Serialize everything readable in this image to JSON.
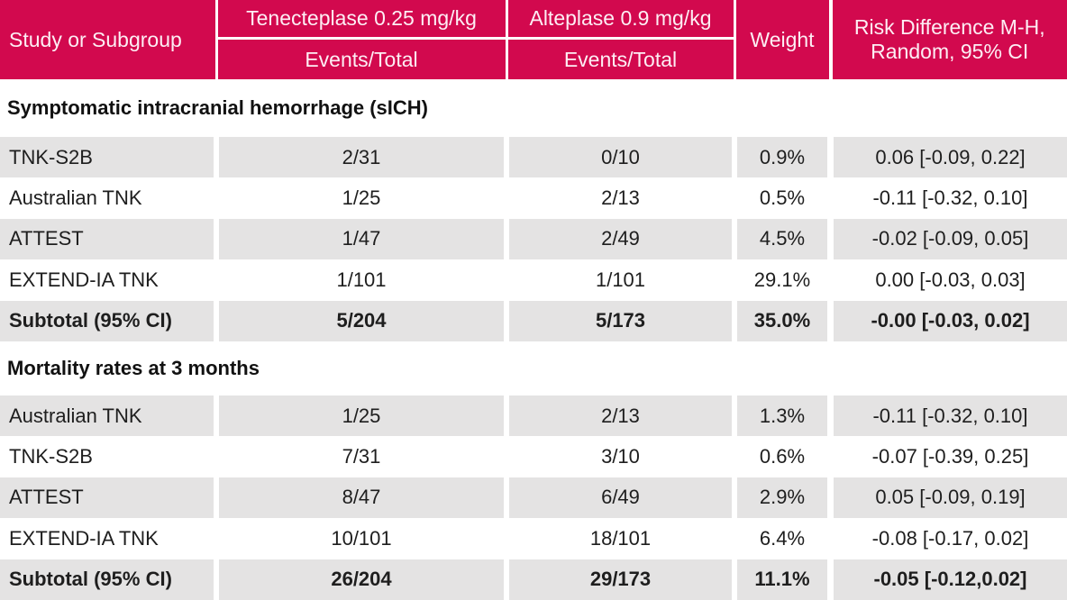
{
  "colors": {
    "header_bg": "#d2094e",
    "header_text": "#fdeef4",
    "shaded_row_bg": "#e4e3e3",
    "body_text": "#1e1e1e",
    "background": "#ffffff"
  },
  "header": {
    "study": "Study or Subgroup",
    "tenecteplase": "Tenecteplase 0.25 mg/kg",
    "tenecteplase_sub": "Events/Total",
    "alteplase": "Alteplase 0.9 mg/kg",
    "alteplase_sub": "Events/Total",
    "weight": "Weight",
    "risk_line1": "Risk Difference M-H,",
    "risk_line2": "Random, 95% CI"
  },
  "chart_data": {
    "type": "table",
    "column_groups": [
      {
        "label": "Study or Subgroup"
      },
      {
        "label": "Tenecteplase 0.25 mg/kg",
        "sub": "Events/Total"
      },
      {
        "label": "Alteplase 0.9 mg/kg",
        "sub": "Events/Total"
      },
      {
        "label": "Weight"
      },
      {
        "label": "Risk Difference M-H, Random, 95% CI"
      }
    ],
    "sections": [
      {
        "title": "Symptomatic intracranial hemorrhage (sICH)",
        "rows": [
          {
            "study": "TNK-S2B",
            "tenecteplase_events_total": "2/31",
            "alteplase_events_total": "0/10",
            "weight": "0.9%",
            "risk_difference": "0.06 [-0.09, 0.22]",
            "is_subtotal": false
          },
          {
            "study": "Australian TNK",
            "tenecteplase_events_total": "1/25",
            "alteplase_events_total": "2/13",
            "weight": "0.5%",
            "risk_difference": "-0.11 [-0.32, 0.10]",
            "is_subtotal": false
          },
          {
            "study": "ATTEST",
            "tenecteplase_events_total": "1/47",
            "alteplase_events_total": "2/49",
            "weight": "4.5%",
            "risk_difference": "-0.02 [-0.09, 0.05]",
            "is_subtotal": false
          },
          {
            "study": "EXTEND-IA TNK",
            "tenecteplase_events_total": "1/101",
            "alteplase_events_total": "1/101",
            "weight": "29.1%",
            "risk_difference": "0.00 [-0.03, 0.03]",
            "is_subtotal": false
          },
          {
            "study": "Subtotal (95% CI)",
            "tenecteplase_events_total": "5/204",
            "alteplase_events_total": "5/173",
            "weight": "35.0%",
            "risk_difference": "-0.00 [-0.03, 0.02]",
            "is_subtotal": true
          }
        ]
      },
      {
        "title": "Mortality rates at 3 months",
        "rows": [
          {
            "study": "Australian TNK",
            "tenecteplase_events_total": "1/25",
            "alteplase_events_total": "2/13",
            "weight": "1.3%",
            "risk_difference": "-0.11 [-0.32, 0.10]",
            "is_subtotal": false
          },
          {
            "study": "TNK-S2B",
            "tenecteplase_events_total": "7/31",
            "alteplase_events_total": "3/10",
            "weight": "0.6%",
            "risk_difference": "-0.07 [-0.39, 0.25]",
            "is_subtotal": false
          },
          {
            "study": "ATTEST",
            "tenecteplase_events_total": "8/47",
            "alteplase_events_total": "6/49",
            "weight": "2.9%",
            "risk_difference": "0.05 [-0.09, 0.19]",
            "is_subtotal": false
          },
          {
            "study": "EXTEND-IA TNK",
            "tenecteplase_events_total": "10/101",
            "alteplase_events_total": "18/101",
            "weight": "6.4%",
            "risk_difference": "-0.08 [-0.17, 0.02]",
            "is_subtotal": false
          },
          {
            "study": "Subtotal (95% CI)",
            "tenecteplase_events_total": "26/204",
            "alteplase_events_total": "29/173",
            "weight": "11.1%",
            "risk_difference": "-0.05 [-0.12,0.02]",
            "is_subtotal": true
          }
        ]
      }
    ]
  }
}
